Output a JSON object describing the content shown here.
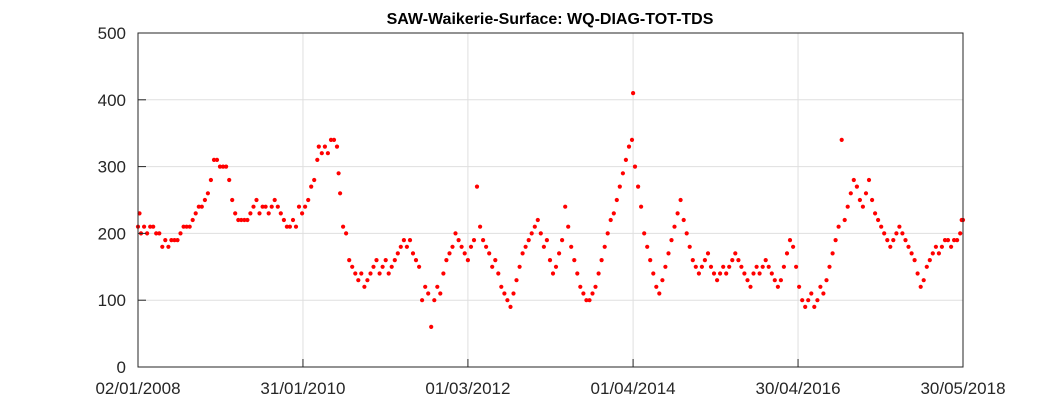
{
  "chart_data": {
    "type": "scatter",
    "title": "SAW-Waikerie-Surface: WQ-DIAG-TOT-TDS",
    "xlabel": "",
    "ylabel": "",
    "xlim": [
      "2008-01-02",
      "2018-05-30"
    ],
    "ylim": [
      0,
      500
    ],
    "y_ticks": [
      0,
      100,
      200,
      300,
      400,
      500
    ],
    "x_ticks": [
      {
        "date": "2008-01-02",
        "label": "02/01/2008"
      },
      {
        "date": "2010-01-31",
        "label": "31/01/2010"
      },
      {
        "date": "2012-03-01",
        "label": "01/03/2012"
      },
      {
        "date": "2014-04-01",
        "label": "01/04/2014"
      },
      {
        "date": "2016-04-30",
        "label": "30/04/2016"
      },
      {
        "date": "2018-05-30",
        "label": "30/05/2018"
      }
    ],
    "grid": true,
    "marker_color": "#ff0000",
    "series": [
      {
        "points": [
          [
            "2008-01-02",
            210
          ],
          [
            "2008-01-09",
            230
          ],
          [
            "2008-01-16",
            200
          ],
          [
            "2008-01-30",
            210
          ],
          [
            "2008-02-13",
            200
          ],
          [
            "2008-02-27",
            210
          ],
          [
            "2008-03-12",
            210
          ],
          [
            "2008-03-26",
            200
          ],
          [
            "2008-04-09",
            200
          ],
          [
            "2008-04-23",
            180
          ],
          [
            "2008-05-07",
            190
          ],
          [
            "2008-05-21",
            180
          ],
          [
            "2008-06-04",
            190
          ],
          [
            "2008-06-18",
            190
          ],
          [
            "2008-07-02",
            190
          ],
          [
            "2008-07-16",
            200
          ],
          [
            "2008-07-30",
            210
          ],
          [
            "2008-08-13",
            210
          ],
          [
            "2008-08-27",
            210
          ],
          [
            "2008-09-10",
            220
          ],
          [
            "2008-09-24",
            230
          ],
          [
            "2008-10-08",
            240
          ],
          [
            "2008-10-22",
            240
          ],
          [
            "2008-11-05",
            250
          ],
          [
            "2008-11-19",
            260
          ],
          [
            "2008-12-03",
            280
          ],
          [
            "2008-12-17",
            310
          ],
          [
            "2008-12-31",
            310
          ],
          [
            "2009-01-14",
            300
          ],
          [
            "2009-01-28",
            300
          ],
          [
            "2009-02-11",
            300
          ],
          [
            "2009-02-25",
            280
          ],
          [
            "2009-03-11",
            250
          ],
          [
            "2009-03-25",
            230
          ],
          [
            "2009-04-08",
            220
          ],
          [
            "2009-04-22",
            220
          ],
          [
            "2009-05-06",
            220
          ],
          [
            "2009-05-20",
            220
          ],
          [
            "2009-06-03",
            230
          ],
          [
            "2009-06-17",
            240
          ],
          [
            "2009-07-01",
            250
          ],
          [
            "2009-07-15",
            230
          ],
          [
            "2009-07-29",
            240
          ],
          [
            "2009-08-12",
            240
          ],
          [
            "2009-08-26",
            230
          ],
          [
            "2009-09-09",
            240
          ],
          [
            "2009-09-23",
            250
          ],
          [
            "2009-10-07",
            240
          ],
          [
            "2009-10-21",
            230
          ],
          [
            "2009-11-04",
            220
          ],
          [
            "2009-11-18",
            210
          ],
          [
            "2009-12-02",
            210
          ],
          [
            "2009-12-16",
            220
          ],
          [
            "2009-12-30",
            210
          ],
          [
            "2010-01-13",
            240
          ],
          [
            "2010-01-27",
            230
          ],
          [
            "2010-02-10",
            240
          ],
          [
            "2010-02-24",
            250
          ],
          [
            "2010-03-10",
            270
          ],
          [
            "2010-03-24",
            280
          ],
          [
            "2010-04-07",
            310
          ],
          [
            "2010-04-14",
            330
          ],
          [
            "2010-04-28",
            320
          ],
          [
            "2010-05-12",
            330
          ],
          [
            "2010-05-26",
            320
          ],
          [
            "2010-06-09",
            340
          ],
          [
            "2010-06-23",
            340
          ],
          [
            "2010-07-07",
            330
          ],
          [
            "2010-07-14",
            290
          ],
          [
            "2010-07-21",
            260
          ],
          [
            "2010-08-04",
            210
          ],
          [
            "2010-08-18",
            200
          ],
          [
            "2010-09-01",
            160
          ],
          [
            "2010-09-15",
            150
          ],
          [
            "2010-09-29",
            140
          ],
          [
            "2010-10-13",
            130
          ],
          [
            "2010-10-27",
            140
          ],
          [
            "2010-11-10",
            120
          ],
          [
            "2010-11-24",
            130
          ],
          [
            "2010-12-08",
            140
          ],
          [
            "2010-12-22",
            150
          ],
          [
            "2011-01-05",
            160
          ],
          [
            "2011-01-19",
            140
          ],
          [
            "2011-02-02",
            150
          ],
          [
            "2011-02-16",
            160
          ],
          [
            "2011-03-02",
            140
          ],
          [
            "2011-03-16",
            150
          ],
          [
            "2011-03-30",
            160
          ],
          [
            "2011-04-13",
            170
          ],
          [
            "2011-04-27",
            180
          ],
          [
            "2011-05-11",
            190
          ],
          [
            "2011-05-25",
            180
          ],
          [
            "2011-06-08",
            190
          ],
          [
            "2011-06-22",
            170
          ],
          [
            "2011-07-06",
            160
          ],
          [
            "2011-07-20",
            150
          ],
          [
            "2011-08-03",
            100
          ],
          [
            "2011-08-17",
            120
          ],
          [
            "2011-08-31",
            110
          ],
          [
            "2011-09-14",
            60
          ],
          [
            "2011-09-28",
            100
          ],
          [
            "2011-10-12",
            120
          ],
          [
            "2011-10-26",
            110
          ],
          [
            "2011-11-09",
            140
          ],
          [
            "2011-11-23",
            160
          ],
          [
            "2011-12-07",
            170
          ],
          [
            "2011-12-21",
            180
          ],
          [
            "2012-01-04",
            200
          ],
          [
            "2012-01-18",
            190
          ],
          [
            "2012-02-01",
            180
          ],
          [
            "2012-02-15",
            170
          ],
          [
            "2012-03-01",
            160
          ],
          [
            "2012-03-15",
            180
          ],
          [
            "2012-03-29",
            190
          ],
          [
            "2012-04-12",
            270
          ],
          [
            "2012-04-26",
            210
          ],
          [
            "2012-05-10",
            190
          ],
          [
            "2012-05-24",
            180
          ],
          [
            "2012-06-07",
            170
          ],
          [
            "2012-06-21",
            150
          ],
          [
            "2012-07-05",
            160
          ],
          [
            "2012-07-19",
            140
          ],
          [
            "2012-08-02",
            120
          ],
          [
            "2012-08-16",
            110
          ],
          [
            "2012-08-30",
            100
          ],
          [
            "2012-09-13",
            90
          ],
          [
            "2012-09-27",
            110
          ],
          [
            "2012-10-11",
            130
          ],
          [
            "2012-10-25",
            150
          ],
          [
            "2012-11-08",
            170
          ],
          [
            "2012-11-22",
            180
          ],
          [
            "2012-12-06",
            190
          ],
          [
            "2012-12-20",
            200
          ],
          [
            "2013-01-03",
            210
          ],
          [
            "2013-01-17",
            220
          ],
          [
            "2013-01-31",
            200
          ],
          [
            "2013-02-14",
            180
          ],
          [
            "2013-02-28",
            190
          ],
          [
            "2013-03-14",
            160
          ],
          [
            "2013-03-28",
            140
          ],
          [
            "2013-04-11",
            150
          ],
          [
            "2013-04-25",
            170
          ],
          [
            "2013-05-09",
            190
          ],
          [
            "2013-05-23",
            240
          ],
          [
            "2013-06-06",
            210
          ],
          [
            "2013-06-20",
            180
          ],
          [
            "2013-07-04",
            160
          ],
          [
            "2013-07-18",
            140
          ],
          [
            "2013-08-01",
            120
          ],
          [
            "2013-08-15",
            110
          ],
          [
            "2013-08-29",
            100
          ],
          [
            "2013-09-12",
            100
          ],
          [
            "2013-09-26",
            110
          ],
          [
            "2013-10-10",
            120
          ],
          [
            "2013-10-24",
            140
          ],
          [
            "2013-11-07",
            160
          ],
          [
            "2013-11-21",
            180
          ],
          [
            "2013-12-05",
            200
          ],
          [
            "2013-12-19",
            220
          ],
          [
            "2014-01-02",
            230
          ],
          [
            "2014-01-16",
            250
          ],
          [
            "2014-01-30",
            270
          ],
          [
            "2014-02-13",
            290
          ],
          [
            "2014-02-27",
            310
          ],
          [
            "2014-03-13",
            330
          ],
          [
            "2014-03-27",
            340
          ],
          [
            "2014-04-01",
            410
          ],
          [
            "2014-04-10",
            300
          ],
          [
            "2014-04-24",
            270
          ],
          [
            "2014-05-08",
            240
          ],
          [
            "2014-05-22",
            200
          ],
          [
            "2014-06-05",
            180
          ],
          [
            "2014-06-19",
            160
          ],
          [
            "2014-07-03",
            140
          ],
          [
            "2014-07-17",
            120
          ],
          [
            "2014-07-31",
            110
          ],
          [
            "2014-08-14",
            130
          ],
          [
            "2014-08-28",
            150
          ],
          [
            "2014-09-11",
            170
          ],
          [
            "2014-09-25",
            190
          ],
          [
            "2014-10-09",
            210
          ],
          [
            "2014-10-23",
            230
          ],
          [
            "2014-11-06",
            250
          ],
          [
            "2014-11-20",
            220
          ],
          [
            "2014-12-04",
            200
          ],
          [
            "2014-12-18",
            180
          ],
          [
            "2015-01-01",
            160
          ],
          [
            "2015-01-15",
            150
          ],
          [
            "2015-01-29",
            140
          ],
          [
            "2015-02-12",
            150
          ],
          [
            "2015-02-26",
            160
          ],
          [
            "2015-03-12",
            170
          ],
          [
            "2015-03-26",
            150
          ],
          [
            "2015-04-09",
            140
          ],
          [
            "2015-04-23",
            130
          ],
          [
            "2015-05-07",
            140
          ],
          [
            "2015-05-21",
            150
          ],
          [
            "2015-06-04",
            140
          ],
          [
            "2015-06-18",
            150
          ],
          [
            "2015-07-02",
            160
          ],
          [
            "2015-07-16",
            170
          ],
          [
            "2015-07-30",
            160
          ],
          [
            "2015-08-13",
            150
          ],
          [
            "2015-08-27",
            140
          ],
          [
            "2015-09-10",
            130
          ],
          [
            "2015-09-24",
            120
          ],
          [
            "2015-10-08",
            140
          ],
          [
            "2015-10-22",
            150
          ],
          [
            "2015-11-05",
            140
          ],
          [
            "2015-11-19",
            150
          ],
          [
            "2015-12-03",
            160
          ],
          [
            "2015-12-17",
            150
          ],
          [
            "2015-12-31",
            140
          ],
          [
            "2016-01-14",
            130
          ],
          [
            "2016-01-28",
            120
          ],
          [
            "2016-02-11",
            130
          ],
          [
            "2016-02-25",
            150
          ],
          [
            "2016-03-10",
            170
          ],
          [
            "2016-03-24",
            190
          ],
          [
            "2016-04-07",
            180
          ],
          [
            "2016-04-21",
            150
          ],
          [
            "2016-05-05",
            120
          ],
          [
            "2016-05-19",
            100
          ],
          [
            "2016-06-02",
            90
          ],
          [
            "2016-06-16",
            100
          ],
          [
            "2016-06-30",
            110
          ],
          [
            "2016-07-14",
            90
          ],
          [
            "2016-07-28",
            100
          ],
          [
            "2016-08-11",
            120
          ],
          [
            "2016-08-25",
            110
          ],
          [
            "2016-09-08",
            130
          ],
          [
            "2016-09-22",
            150
          ],
          [
            "2016-10-06",
            170
          ],
          [
            "2016-10-20",
            190
          ],
          [
            "2016-11-03",
            210
          ],
          [
            "2016-11-17",
            340
          ],
          [
            "2016-12-01",
            220
          ],
          [
            "2016-12-15",
            240
          ],
          [
            "2016-12-29",
            260
          ],
          [
            "2017-01-12",
            280
          ],
          [
            "2017-01-26",
            270
          ],
          [
            "2017-02-09",
            250
          ],
          [
            "2017-02-23",
            240
          ],
          [
            "2017-03-09",
            260
          ],
          [
            "2017-03-23",
            280
          ],
          [
            "2017-04-06",
            250
          ],
          [
            "2017-04-20",
            230
          ],
          [
            "2017-05-04",
            220
          ],
          [
            "2017-05-18",
            210
          ],
          [
            "2017-06-01",
            200
          ],
          [
            "2017-06-15",
            190
          ],
          [
            "2017-06-29",
            180
          ],
          [
            "2017-07-13",
            190
          ],
          [
            "2017-07-27",
            200
          ],
          [
            "2017-08-10",
            210
          ],
          [
            "2017-08-24",
            200
          ],
          [
            "2017-09-07",
            190
          ],
          [
            "2017-09-21",
            180
          ],
          [
            "2017-10-05",
            170
          ],
          [
            "2017-10-19",
            160
          ],
          [
            "2017-11-02",
            140
          ],
          [
            "2017-11-16",
            120
          ],
          [
            "2017-11-30",
            130
          ],
          [
            "2017-12-14",
            150
          ],
          [
            "2017-12-28",
            160
          ],
          [
            "2018-01-11",
            170
          ],
          [
            "2018-01-25",
            180
          ],
          [
            "2018-02-08",
            170
          ],
          [
            "2018-02-22",
            180
          ],
          [
            "2018-03-08",
            190
          ],
          [
            "2018-03-22",
            190
          ],
          [
            "2018-04-05",
            180
          ],
          [
            "2018-04-19",
            190
          ],
          [
            "2018-05-03",
            190
          ],
          [
            "2018-05-17",
            200
          ],
          [
            "2018-05-24",
            220
          ],
          [
            "2018-05-30",
            220
          ]
        ]
      }
    ]
  }
}
